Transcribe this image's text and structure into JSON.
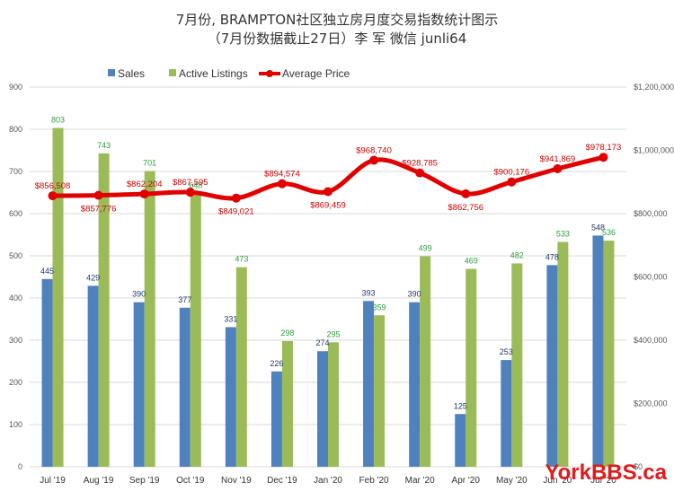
{
  "chart_data": {
    "type": "bar",
    "title": "7月份, BRAMPTON社区独立房月度交易指数统计图示",
    "subtitle": "（7月份数据截止27日）李 军  微信  junli64",
    "categories": [
      "Jul '19",
      "Aug '19",
      "Sep '19",
      "Oct '19",
      "Nov '19",
      "Dec '19",
      "Jan '20",
      "Feb '20",
      "Mar '20",
      "Apr '20",
      "May '20",
      "Jun '20",
      "Jul '20"
    ],
    "series": [
      {
        "name": "Sales",
        "type": "bar",
        "axis": "left",
        "color": "#4f81bd",
        "values": [
          445,
          429,
          390,
          377,
          331,
          226,
          274,
          393,
          390,
          125,
          253,
          478,
          548
        ]
      },
      {
        "name": "Active Listings",
        "type": "bar",
        "axis": "left",
        "color": "#9bbb59",
        "values": [
          803,
          743,
          701,
          648,
          473,
          298,
          295,
          359,
          499,
          469,
          482,
          533,
          536
        ]
      },
      {
        "name": "Average Price",
        "type": "line",
        "axis": "right",
        "color": "#e00000",
        "values": [
          856508,
          857776,
          862204,
          867595,
          849021,
          894574,
          869459,
          968740,
          928785,
          862756,
          900176,
          941869,
          978173
        ],
        "labels": [
          "$856,508",
          "$857,776",
          "$862,204",
          "$867,595",
          "$849,021",
          "$894,574",
          "$869,459",
          "$968,740",
          "$928,785",
          "$862,756",
          "$900,176",
          "$941,869",
          "$978,173"
        ]
      }
    ],
    "ylim_left": [
      0,
      900
    ],
    "yticks_left": [
      "0",
      "100",
      "200",
      "300",
      "400",
      "500",
      "600",
      "700",
      "800",
      "900"
    ],
    "ylim_right": [
      0,
      1200000
    ],
    "yticks_right": [
      "$0",
      "$200,000",
      "$400,000",
      "$600,000",
      "$800,000",
      "$1,000,000",
      "$1,200,000"
    ],
    "grid": true,
    "legend": "top-left"
  },
  "watermark": "YorkBBS.ca"
}
